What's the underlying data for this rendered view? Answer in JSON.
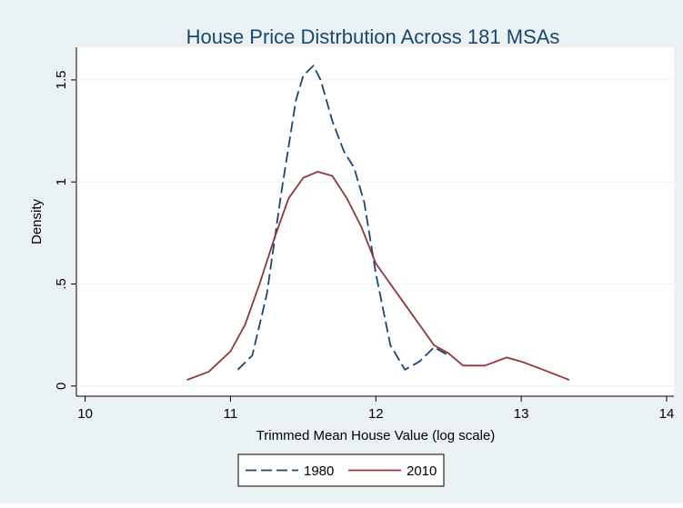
{
  "chart_data": {
    "type": "line",
    "title": "House Price Distrbution Across 181 MSAs",
    "x_label": "Trimmed Mean House Value (log scale)",
    "y_label": "Density",
    "xlim": [
      9.94,
      14.05
    ],
    "ylim": [
      -0.05,
      1.66
    ],
    "xticks": [
      10,
      11,
      12,
      13,
      14
    ],
    "yticks": [
      0,
      {
        "value": 0.5,
        "label": ".5"
      },
      1,
      1.5
    ],
    "grid": true,
    "legend_position": "bottom",
    "series": [
      {
        "name": "1980",
        "color": "#1a476f",
        "dash": true,
        "x": [
          11.05,
          11.15,
          11.25,
          11.35,
          11.45,
          11.5,
          11.57,
          11.62,
          11.7,
          11.78,
          11.85,
          11.92,
          12.0,
          12.1,
          12.2,
          12.3,
          12.4,
          12.5
        ],
        "values": [
          0.08,
          0.15,
          0.45,
          0.95,
          1.4,
          1.52,
          1.57,
          1.5,
          1.3,
          1.15,
          1.07,
          0.9,
          0.55,
          0.2,
          0.08,
          0.12,
          0.19,
          0.15
        ]
      },
      {
        "name": "2010",
        "color": "#90353b",
        "dash": false,
        "x": [
          10.7,
          10.85,
          11.0,
          11.1,
          11.2,
          11.3,
          11.4,
          11.5,
          11.6,
          11.7,
          11.8,
          11.9,
          12.0,
          12.1,
          12.2,
          12.3,
          12.4,
          12.5,
          12.6,
          12.75,
          12.9,
          13.0,
          13.15,
          13.33
        ],
        "values": [
          0.03,
          0.07,
          0.17,
          0.3,
          0.5,
          0.72,
          0.92,
          1.02,
          1.05,
          1.03,
          0.92,
          0.78,
          0.6,
          0.5,
          0.4,
          0.3,
          0.2,
          0.16,
          0.1,
          0.1,
          0.14,
          0.12,
          0.08,
          0.03
        ]
      }
    ]
  }
}
